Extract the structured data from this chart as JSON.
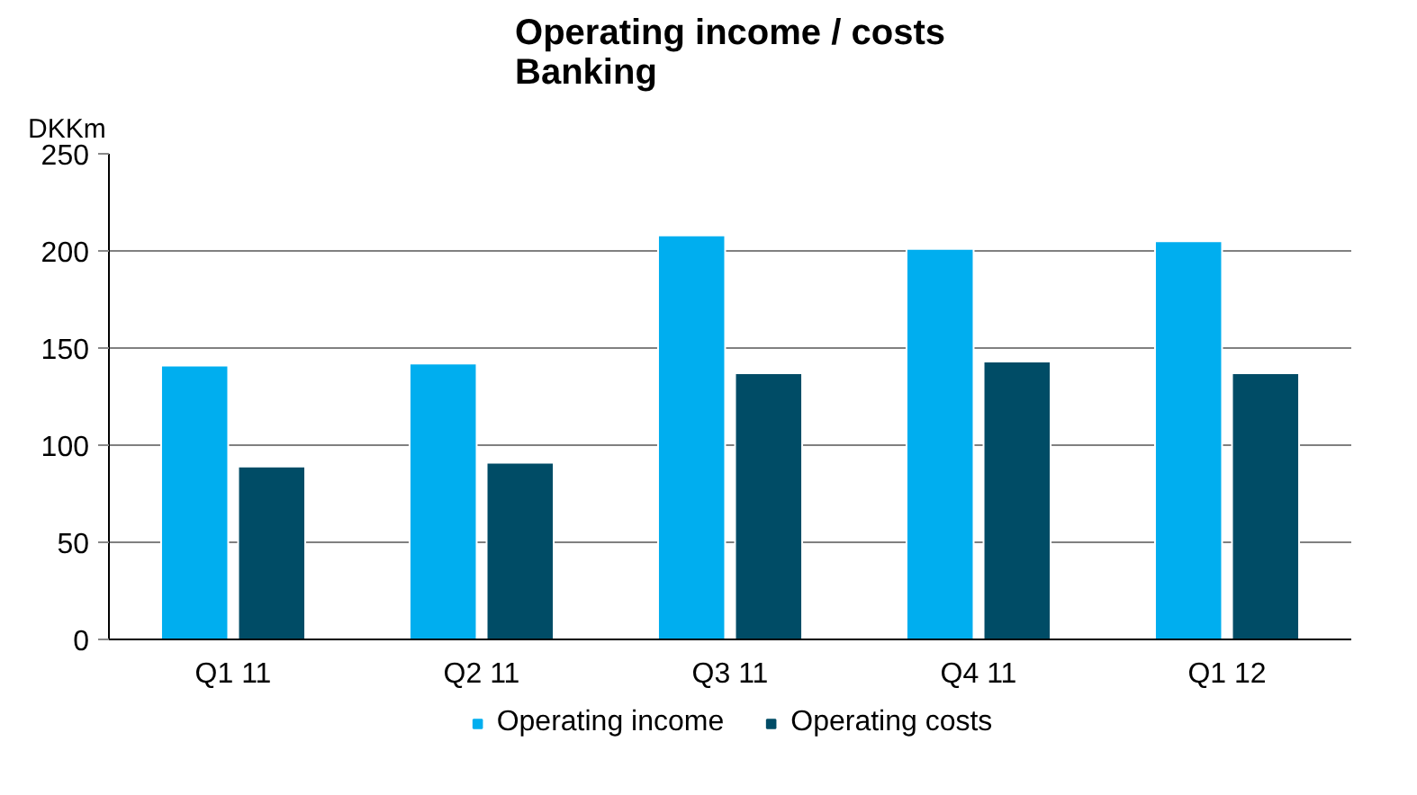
{
  "chart_data": {
    "type": "bar",
    "title": "Operating income / costs\nBanking",
    "ylabel": "DKKm",
    "categories": [
      "Q1 11",
      "Q2 11",
      "Q3 11",
      "Q4 11",
      "Q1 12"
    ],
    "series": [
      {
        "name": "Operating income",
        "color": "#00aeef",
        "values": [
          141,
          142,
          208,
          201,
          205
        ]
      },
      {
        "name": "Operating costs",
        "color": "#004c66",
        "values": [
          89,
          91,
          137,
          143,
          137
        ]
      }
    ],
    "ylim": [
      0,
      250
    ],
    "yticks": [
      0,
      50,
      100,
      150,
      200,
      250
    ],
    "grid": "y",
    "legend": "bottom"
  }
}
